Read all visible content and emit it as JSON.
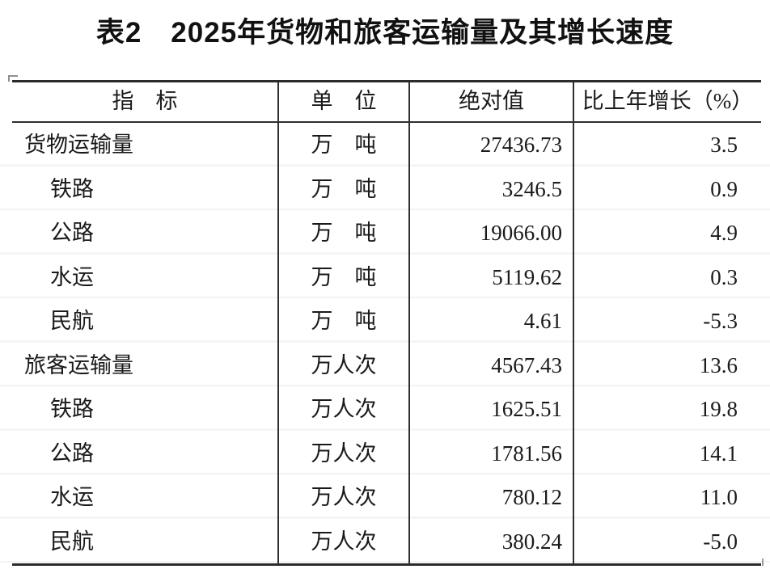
{
  "page": {
    "title": "表2　2025年货物和旅客运输量及其增长速度"
  },
  "table": {
    "headers": {
      "indicator": "指　标",
      "unit": "单　位",
      "value": "绝对值",
      "growth": "比上年增长（%）"
    },
    "rows": [
      {
        "indicator": "货物运输量",
        "unit": "万　吨",
        "value": "27436.73",
        "growth": "3.5"
      },
      {
        "indicator": "铁路",
        "unit": "万　吨",
        "value": "3246.5",
        "growth": "0.9"
      },
      {
        "indicator": "公路",
        "unit": "万　吨",
        "value": "19066.00",
        "growth": "4.9"
      },
      {
        "indicator": "水运",
        "unit": "万　吨",
        "value": "5119.62",
        "growth": "0.3"
      },
      {
        "indicator": "民航",
        "unit": "万　吨",
        "value": "4.61",
        "growth": "-5.3"
      },
      {
        "indicator": "旅客运输量",
        "unit": "万人次",
        "value": "4567.43",
        "growth": "13.6"
      },
      {
        "indicator": "铁路",
        "unit": "万人次",
        "value": "1625.51",
        "growth": "19.8"
      },
      {
        "indicator": "公路",
        "unit": "万人次",
        "value": "1781.56",
        "growth": "14.1"
      },
      {
        "indicator": "水运",
        "unit": "万人次",
        "value": "780.12",
        "growth": "11.0"
      },
      {
        "indicator": "民航",
        "unit": "万人次",
        "value": "380.24",
        "growth": "-5.0"
      }
    ]
  }
}
